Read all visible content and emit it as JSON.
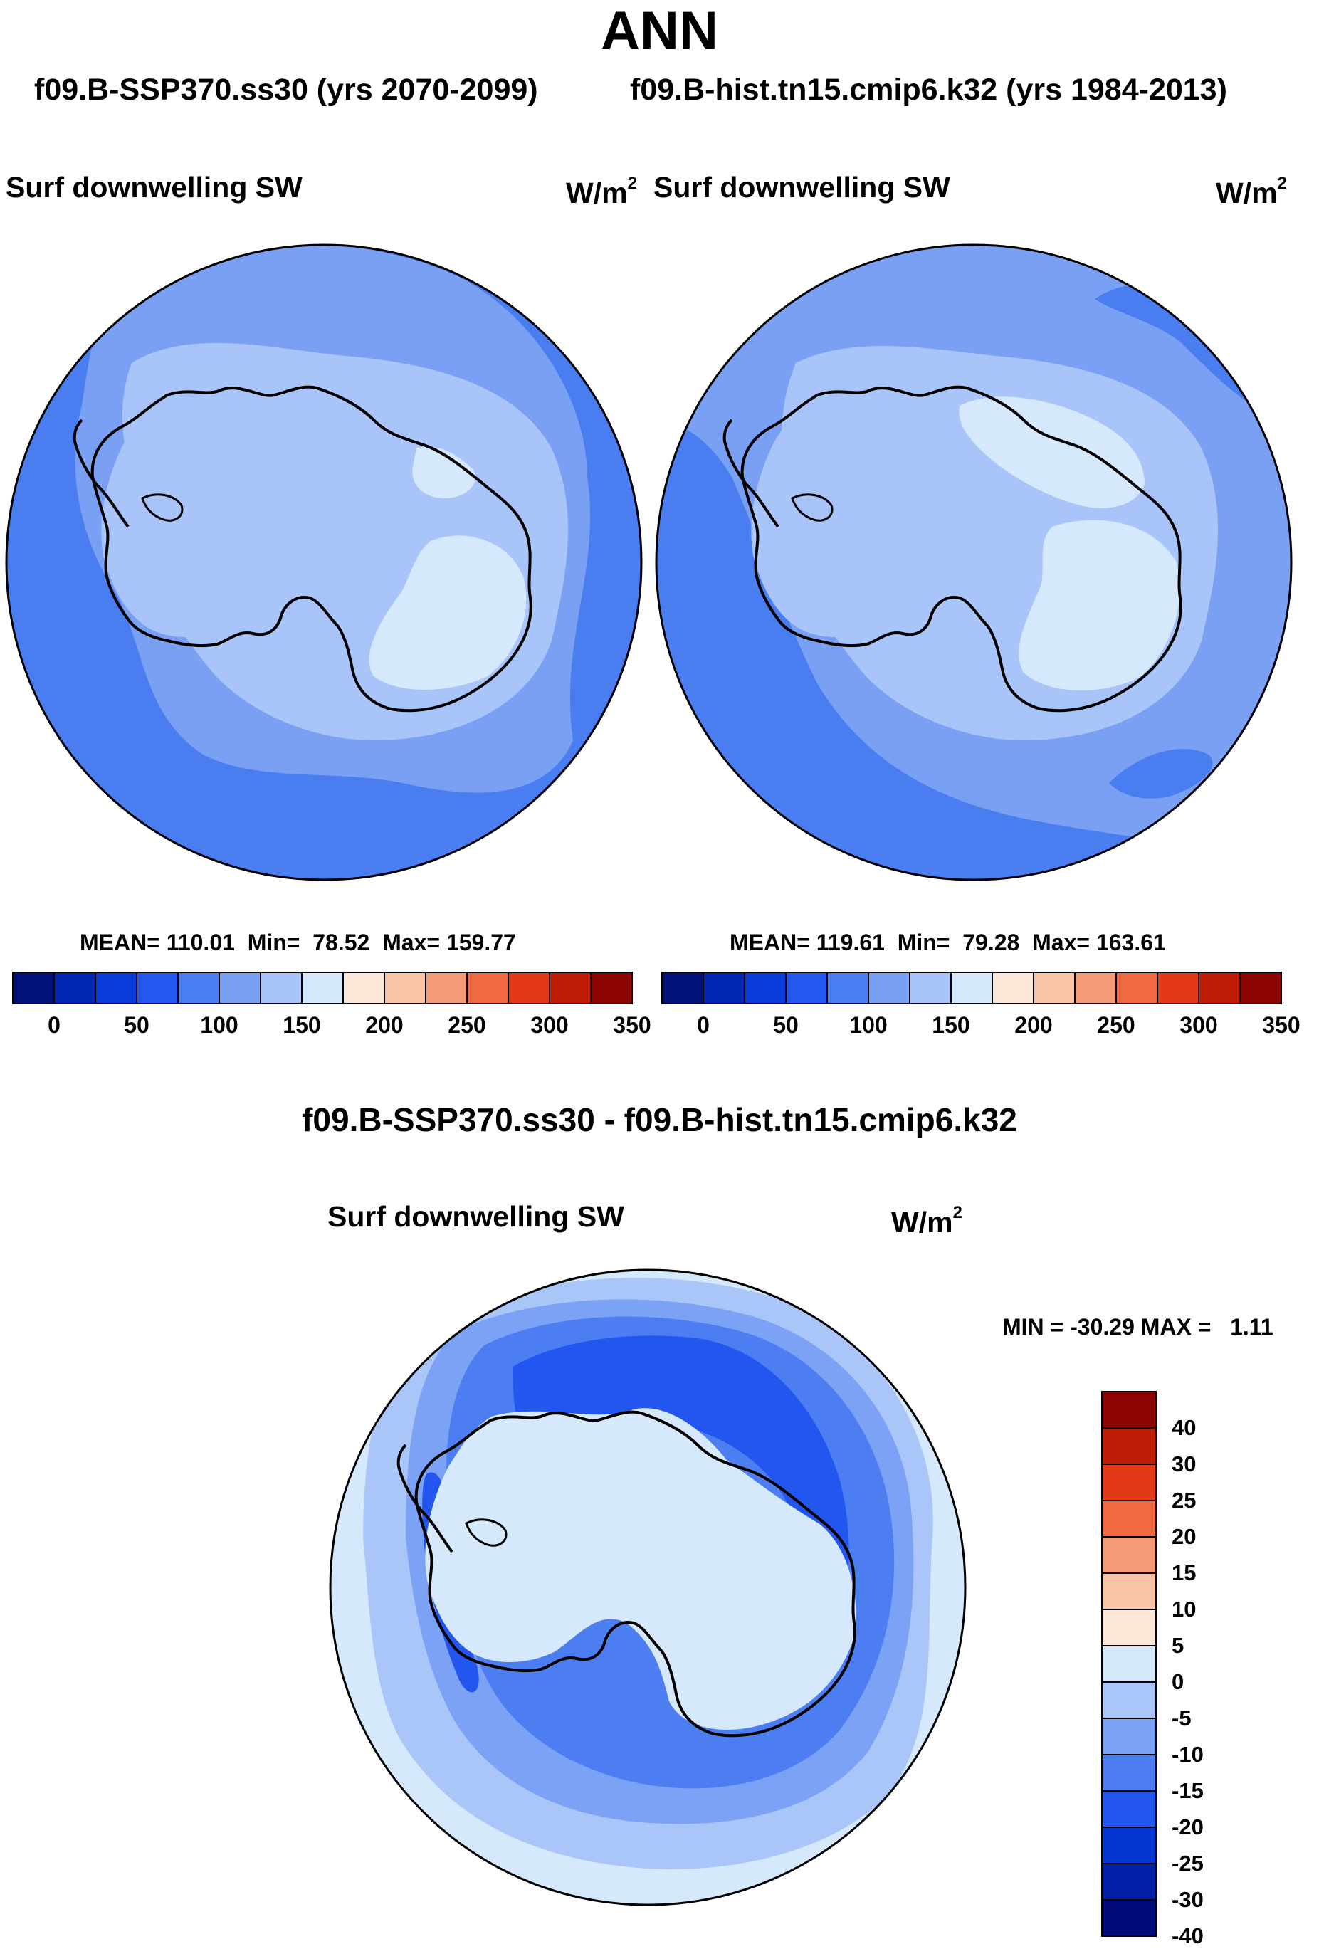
{
  "title": "ANN",
  "subtitle_left": "f09.B-SSP370.ss30 (yrs 2070-2099)",
  "subtitle_right": "f09.B-hist.tn15.cmip6.k32 (yrs 1984-2013)",
  "panels": [
    {
      "variable": "Surf downwelling SW",
      "units_base": "W/m",
      "units_exp": "2",
      "mean_label": "MEAN=",
      "mean": "110.01",
      "min_label": "Min=",
      "min": "78.52",
      "max_label": "Max=",
      "max": "159.77"
    },
    {
      "variable": "Surf downwelling SW",
      "units_base": "W/m",
      "units_exp": "2",
      "mean_label": "MEAN=",
      "mean": "119.61",
      "min_label": "Min=",
      "min": "79.28",
      "max_label": "Max=",
      "max": "163.61"
    }
  ],
  "diff": {
    "title": "f09.B-SSP370.ss30 - f09.B-hist.tn15.cmip6.k32",
    "variable": "Surf downwelling SW",
    "units_base": "W/m",
    "units_exp": "2",
    "minmax": "MIN = -30.29 MAX =   1.11"
  },
  "abs_colorbar": {
    "colors": [
      "#00127a",
      "#0026b0",
      "#0a3ad8",
      "#2458f0",
      "#4b7ef2",
      "#7aa0f4",
      "#a9c4f8",
      "#d6e8fb",
      "#fce7d8",
      "#f9c4a6",
      "#f59a76",
      "#ef6a42",
      "#e23a16",
      "#c01c06",
      "#8c0404"
    ],
    "ticks": [
      "0",
      "50",
      "100",
      "150",
      "200",
      "250",
      "300",
      "350"
    ]
  },
  "diff_colorbar": {
    "colors": [
      "#000c78",
      "#0020a8",
      "#0636d2",
      "#2256ee",
      "#4c7ef2",
      "#7ca2f6",
      "#aac6f8",
      "#d6e8fb",
      "#fce7d8",
      "#f9c4a6",
      "#f59a76",
      "#ef6a42",
      "#e23a16",
      "#c01c06",
      "#8c0404"
    ],
    "ticks": [
      "-40",
      "-30",
      "-25",
      "-20",
      "-15",
      "-10",
      "-5",
      "0",
      "5",
      "10",
      "15",
      "20",
      "25",
      "30",
      "40"
    ]
  },
  "map_colors": {
    "ocean_dark": "#4a7df0",
    "ocean_mid": "#7aa0f4",
    "shelf": "#a9c4f8",
    "ice": "#d6e8fb",
    "diff_bg": "#d6e8fb",
    "diff_m10": "#aac6f8",
    "diff_m15": "#7ca2f6",
    "diff_m20": "#4c7ef2",
    "diff_m25": "#2256ee",
    "diff_pos": "#fce7d8",
    "coast": "#000000"
  }
}
